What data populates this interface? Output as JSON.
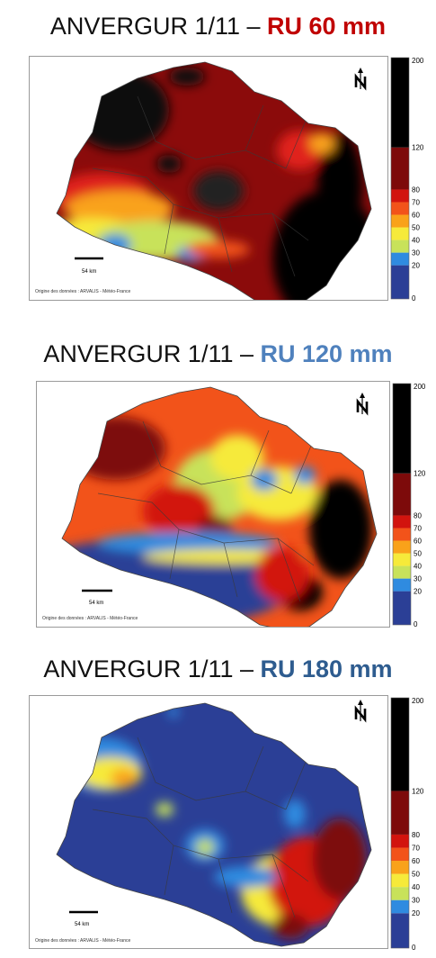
{
  "colors": {
    "ru_60": "#c00000",
    "ru_120": "#4f81bd",
    "ru_180": "#2e5c8f"
  },
  "legend": {
    "ticks": [
      "200",
      "120",
      "80",
      "70",
      "60",
      "50",
      "40",
      "30",
      "20",
      "0"
    ],
    "bands": [
      {
        "from": 0,
        "to": 20,
        "color": "#2b3f96"
      },
      {
        "from": 20,
        "to": 30,
        "color": "#2f8be0"
      },
      {
        "from": 30,
        "to": 40,
        "color": "#c8e25a"
      },
      {
        "from": 40,
        "to": 50,
        "color": "#f6ea3a"
      },
      {
        "from": 50,
        "to": 60,
        "color": "#f9a21a"
      },
      {
        "from": 60,
        "to": 70,
        "color": "#f2531a"
      },
      {
        "from": 70,
        "to": 80,
        "color": "#d2140e"
      },
      {
        "from": 80,
        "to": 120,
        "color": "#7d0a0a"
      },
      {
        "from": 120,
        "to": 200,
        "color": "#000000"
      }
    ]
  },
  "panels": [
    {
      "title_prefix": "ANVERGUR 1/11 – ",
      "ru_label": "RU 60 mm",
      "scale_label": "54 km",
      "source_note": "Origine des données : ARVALIS - Météo-France",
      "north_icon": "north-arrow-icon"
    },
    {
      "title_prefix": "ANVERGUR 1/11 – ",
      "ru_label": "RU 120 mm",
      "scale_label": "54 km",
      "source_note": "Origine des données : ARVALIS - Météo-France",
      "north_icon": "north-arrow-icon"
    },
    {
      "title_prefix": "ANVERGUR 1/11 – ",
      "ru_label": "RU 180 mm",
      "scale_label": "54 km",
      "source_note": "Origine des données : ARVALIS - Météo-France",
      "north_icon": "north-arrow-icon"
    }
  ]
}
